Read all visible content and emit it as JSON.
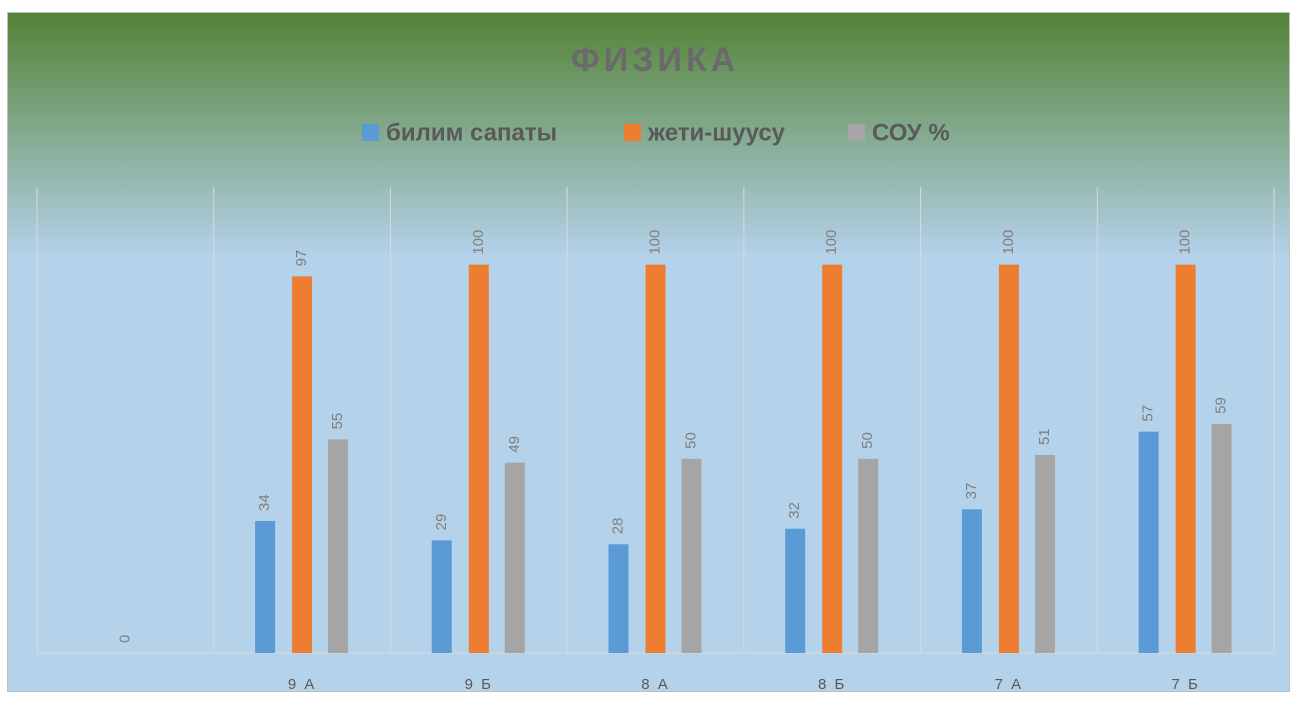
{
  "chart_data": {
    "type": "bar",
    "title": "ФИЗИКА",
    "categories": [
      null,
      "9 А",
      "9 Б",
      "8 А",
      "8 Б",
      "7 А",
      "7 Б"
    ],
    "series": [
      {
        "name": "билим сапаты",
        "color": "#5b9bd5",
        "values": [
          null,
          34,
          29,
          28,
          32,
          37,
          57
        ]
      },
      {
        "name": "жети-шуусу",
        "color": "#ed7d31",
        "values": [
          0,
          97,
          100,
          100,
          100,
          100,
          100
        ]
      },
      {
        "name": "СОУ %",
        "color": "#a5a5a5",
        "values": [
          null,
          55,
          49,
          50,
          50,
          51,
          59
        ]
      }
    ],
    "ylim": [
      0,
      120
    ],
    "legend": "top"
  }
}
